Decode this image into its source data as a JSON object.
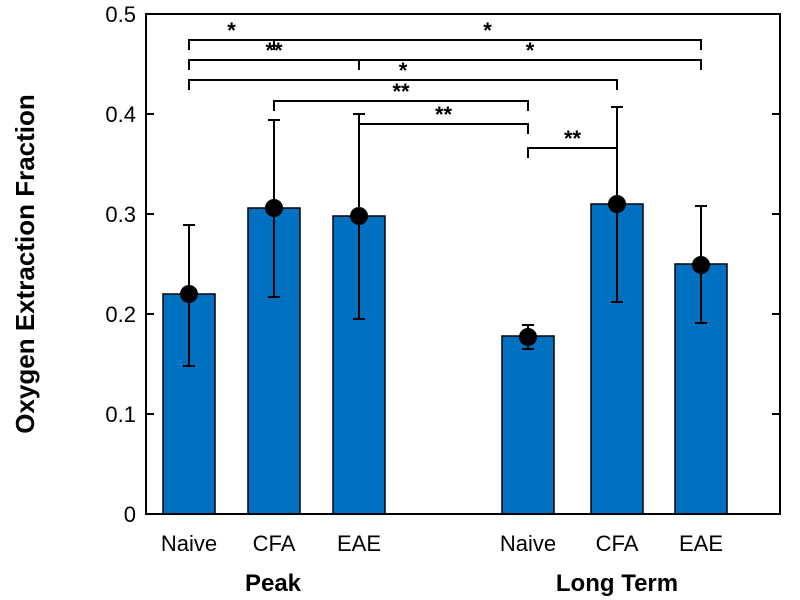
{
  "chart_data": {
    "type": "bar",
    "title": "",
    "xlabel": "",
    "ylabel": "Oxygen Extraction Fraction",
    "ylim": [
      0,
      0.5
    ],
    "yticks": [
      0,
      0.1,
      0.2,
      0.3,
      0.4,
      0.5
    ],
    "ytick_labels": [
      "0",
      "0.1",
      "0.2",
      "0.3",
      "0.4",
      "0.5"
    ],
    "grid": false,
    "bar_color": "#0070C0",
    "marker_color": "#000000",
    "groups": [
      {
        "label": "Peak",
        "categories": [
          "Naive",
          "CFA",
          "EAE"
        ]
      },
      {
        "label": "Long Term",
        "categories": [
          "Naive",
          "CFA",
          "EAE"
        ]
      }
    ],
    "bars": [
      {
        "group": "Peak",
        "category": "Naive",
        "value": 0.22,
        "marker": 0.22,
        "err_low": 0.148,
        "err_high": 0.289
      },
      {
        "group": "Peak",
        "category": "CFA",
        "value": 0.306,
        "marker": 0.306,
        "err_low": 0.217,
        "err_high": 0.394
      },
      {
        "group": "Peak",
        "category": "EAE",
        "value": 0.298,
        "marker": 0.298,
        "err_low": 0.195,
        "err_high": 0.4
      },
      {
        "group": "Long Term",
        "category": "Naive",
        "value": 0.178,
        "marker": 0.177,
        "err_low": 0.165,
        "err_high": 0.189
      },
      {
        "group": "Long Term",
        "category": "CFA",
        "value": 0.31,
        "marker": 0.31,
        "err_low": 0.212,
        "err_high": 0.407
      },
      {
        "group": "Long Term",
        "category": "EAE",
        "value": 0.25,
        "marker": 0.249,
        "err_low": 0.191,
        "err_high": 0.308
      }
    ],
    "significance": [
      {
        "from": 0,
        "to": 1,
        "label": "*",
        "level": 0.474
      },
      {
        "from": 1,
        "to": 5,
        "label": "*",
        "level": 0.474
      },
      {
        "from": 0,
        "to": 2,
        "label": "**",
        "level": 0.454
      },
      {
        "from": 2,
        "to": 5,
        "label": "*",
        "level": 0.454
      },
      {
        "from": 0,
        "to": 4,
        "label": "*",
        "level": 0.434
      },
      {
        "from": 1,
        "to": 3,
        "label": "**",
        "level": 0.413
      },
      {
        "from": 2,
        "to": 3,
        "label": "**",
        "level": 0.39
      },
      {
        "from": 3,
        "to": 4,
        "label": "**",
        "level": 0.366
      }
    ]
  }
}
